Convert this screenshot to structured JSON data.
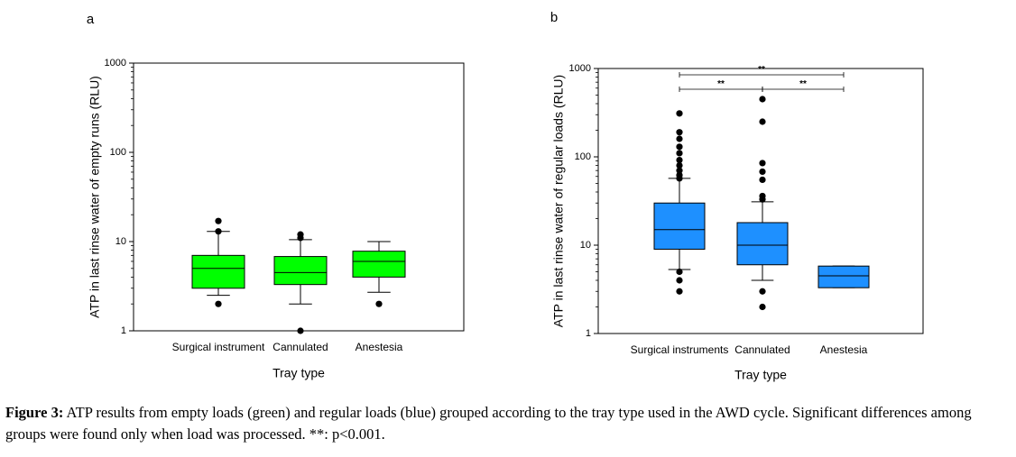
{
  "caption": {
    "label": "Figure 3:",
    "text": " ATP results from empty loads (green) and regular loads (blue) grouped according to the tray type used in the AWD cycle. Significant differences among groups were found only when load was processed. **: p<0.001."
  },
  "chart_data": [
    {
      "type": "box",
      "panel_label": "a",
      "ylabel": "ATP in last rinse water of empty runs (RLU)",
      "xlabel": "Tray type",
      "yscale": "log",
      "ylim": [
        1,
        1000
      ],
      "yticks": [
        "1",
        "10",
        "100",
        "1000"
      ],
      "color": "#00ff00",
      "categories": [
        "Surgical instrument",
        "Cannulated",
        "Anestesia"
      ],
      "boxes": [
        {
          "whisker_low": 2.5,
          "q1": 3.0,
          "median": 5.0,
          "q3": 7.0,
          "whisker_high": 13.0,
          "outliers": [
            2.0,
            13.0,
            17.0
          ]
        },
        {
          "whisker_low": 2.0,
          "q1": 3.3,
          "median": 4.5,
          "q3": 6.8,
          "whisker_high": 10.5,
          "outliers": [
            1.0,
            11.0,
            12.0
          ]
        },
        {
          "whisker_low": 2.7,
          "q1": 4.0,
          "median": 6.0,
          "q3": 7.8,
          "whisker_high": 10.0,
          "outliers": [
            2.0
          ]
        }
      ],
      "significance": []
    },
    {
      "type": "box",
      "panel_label": "b",
      "ylabel": "ATP in last rinse water of regular loads (RLU)",
      "xlabel": "Tray type",
      "yscale": "log",
      "ylim": [
        1,
        1000
      ],
      "yticks": [
        "1",
        "10",
        "100",
        "1000"
      ],
      "color": "#1e90ff",
      "categories": [
        "Surgical instruments",
        "Cannulated",
        "Anestesia"
      ],
      "boxes": [
        {
          "whisker_low": 5.3,
          "q1": 9.0,
          "median": 15.0,
          "q3": 30.0,
          "whisker_high": 57.0,
          "outliers": [
            3.0,
            4.0,
            5.0,
            57.0,
            62.0,
            70.0,
            80.0,
            92.0,
            110.0,
            130.0,
            160.0,
            190.0,
            310.0
          ]
        },
        {
          "whisker_low": 4.0,
          "q1": 6.0,
          "median": 10.0,
          "q3": 18.0,
          "whisker_high": 31.0,
          "outliers": [
            2.0,
            3.0,
            33.0,
            36.0,
            55.0,
            68.0,
            85.0,
            250.0,
            450.0
          ]
        },
        {
          "whisker_low": 3.3,
          "q1": 3.3,
          "median": 4.5,
          "q3": 5.8,
          "whisker_high": 5.8,
          "outliers": []
        }
      ],
      "significance": [
        {
          "from": 0,
          "to": 2,
          "label": "**",
          "level": 2
        },
        {
          "from": 0,
          "to": 1,
          "label": "**",
          "level": 1
        },
        {
          "from": 1,
          "to": 2,
          "label": "**",
          "level": 1
        }
      ]
    }
  ]
}
